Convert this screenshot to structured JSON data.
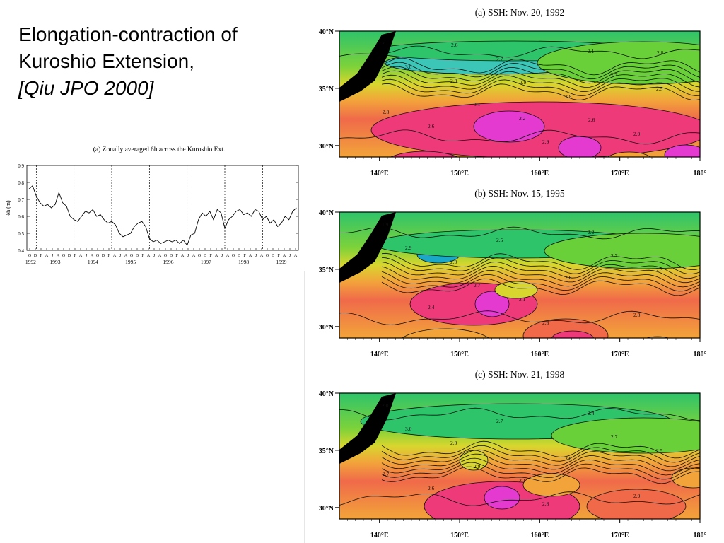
{
  "slide": {
    "title_line1": "Elongation-contraction of",
    "title_line2": "Kuroshio Extension,",
    "citation": "[Qiu JPO 2000]"
  },
  "chart_data": [
    {
      "type": "line",
      "title": "(a) Zonally averaged δh across the Kuroshio Ext.",
      "ylabel": "δh (m)",
      "xlabel": "",
      "ylim": [
        0.4,
        0.9
      ],
      "yticks": [
        "0.9",
        "0.8",
        "0.7",
        "0.6",
        "0.5",
        "0.4"
      ],
      "xlim": [
        1992.75,
        1999.95
      ],
      "month_letters": [
        "O",
        "D",
        "F",
        "A",
        "J",
        "A",
        "O",
        "D",
        "F",
        "A",
        "J",
        "A",
        "O",
        "D",
        "F",
        "A",
        "J",
        "A",
        "O",
        "D",
        "F",
        "A",
        "J",
        "A",
        "O",
        "D",
        "F",
        "A",
        "J",
        "A",
        "O",
        "D",
        "F",
        "A",
        "J",
        "A",
        "O",
        "D",
        "F",
        "A",
        "J",
        "A",
        "O",
        "D",
        "F",
        "A",
        "J",
        "A"
      ],
      "year_labels": [
        "1992",
        "1993",
        "1994",
        "1995",
        "1996",
        "1997",
        "1998",
        "1999"
      ],
      "year_label_pos": [
        1992.85,
        1993.5,
        1994.5,
        1995.5,
        1996.5,
        1997.5,
        1998.5,
        1999.5
      ],
      "dashed_lines_at": [
        1993.0,
        1994.0,
        1995.0,
        1996.0,
        1997.0,
        1998.0,
        1999.0
      ],
      "grid": false,
      "series": [
        {
          "x": [
            1992.8,
            1992.9,
            1993.0,
            1993.1,
            1993.2,
            1993.3,
            1993.4,
            1993.5,
            1993.6,
            1993.7,
            1993.8,
            1993.9,
            1994.0,
            1994.1,
            1994.2,
            1994.3,
            1994.4,
            1994.5,
            1994.6,
            1994.7,
            1994.8,
            1994.9,
            1995.0,
            1995.1,
            1995.2,
            1995.3,
            1995.4,
            1995.5,
            1995.6,
            1995.7,
            1995.8,
            1995.9,
            1996.0,
            1996.1,
            1996.2,
            1996.3,
            1996.4,
            1996.5,
            1996.6,
            1996.7,
            1996.8,
            1996.9,
            1997.0,
            1997.1,
            1997.2,
            1997.3,
            1997.4,
            1997.5,
            1997.6,
            1997.7,
            1997.8,
            1997.9,
            1998.0,
            1998.1,
            1998.2,
            1998.3,
            1998.4,
            1998.5,
            1998.6,
            1998.7,
            1998.8,
            1998.9,
            1999.0,
            1999.1,
            1999.2,
            1999.3,
            1999.4,
            1999.5,
            1999.6,
            1999.7,
            1999.8,
            1999.9
          ],
          "y": [
            0.76,
            0.78,
            0.72,
            0.68,
            0.66,
            0.67,
            0.65,
            0.67,
            0.74,
            0.68,
            0.66,
            0.6,
            0.58,
            0.57,
            0.6,
            0.63,
            0.62,
            0.64,
            0.6,
            0.61,
            0.58,
            0.56,
            0.57,
            0.55,
            0.5,
            0.48,
            0.49,
            0.5,
            0.54,
            0.56,
            0.57,
            0.54,
            0.47,
            0.45,
            0.46,
            0.44,
            0.45,
            0.46,
            0.45,
            0.46,
            0.44,
            0.46,
            0.43,
            0.49,
            0.5,
            0.58,
            0.62,
            0.6,
            0.63,
            0.58,
            0.64,
            0.62,
            0.53,
            0.58,
            0.6,
            0.63,
            0.64,
            0.61,
            0.62,
            0.6,
            0.64,
            0.63,
            0.58,
            0.6,
            0.56,
            0.58,
            0.54,
            0.56,
            0.6,
            0.58,
            0.63,
            0.65
          ]
        }
      ]
    },
    {
      "type": "heatmap",
      "title": "(a) SSH: Nov. 20, 1992",
      "xticks": [
        "140°E",
        "150°E",
        "160°E",
        "170°E",
        "180°"
      ],
      "yticks": [
        "40°N",
        "35°N",
        "30°N"
      ],
      "xlim": [
        135,
        180
      ],
      "ylim": [
        29,
        40
      ],
      "contour_labels": [
        "2.1",
        "2.3",
        "2.2",
        "2.1",
        "2.5",
        "2.6",
        "2.7",
        "2.8",
        "2.9",
        "3.0",
        "3.1",
        "2.9",
        "2.7",
        "2.8",
        "2.6",
        "2.9",
        "2.6",
        "2.8"
      ],
      "colorscale": [
        "#1aa8c8",
        "#2ec46a",
        "#7cd23a",
        "#d8d62e",
        "#f2a43a",
        "#f06a4a",
        "#ef3a7a",
        "#e53ad0"
      ]
    },
    {
      "type": "heatmap",
      "title": "(b) SSH: Nov. 15, 1995",
      "xticks": [
        "140°E",
        "150°E",
        "160°E",
        "170°E",
        "180°"
      ],
      "yticks": [
        "40°N",
        "35°N",
        "30°N"
      ],
      "xlim": [
        135,
        180
      ],
      "ylim": [
        29,
        40
      ],
      "contour_labels": [
        "1.9",
        "2.0",
        "2.1",
        "2.2",
        "2.3",
        "2.4",
        "2.5",
        "2.6",
        "2.8",
        "2.9",
        "2.7",
        "2.6",
        "2.7"
      ],
      "colorscale": [
        "#1aa8c8",
        "#2ec46a",
        "#7cd23a",
        "#d8d62e",
        "#f2a43a",
        "#f06a4a",
        "#ef3a7a",
        "#e53ad0"
      ]
    },
    {
      "type": "heatmap",
      "title": "(c) SSH: Nov. 21, 1998",
      "xticks": [
        "140°E",
        "150°E",
        "160°E",
        "170°E",
        "180°"
      ],
      "yticks": [
        "40°N",
        "35°N",
        "30°N"
      ],
      "xlim": [
        135,
        180
      ],
      "ylim": [
        29,
        40
      ],
      "contour_labels": [
        "2.0",
        "2.0",
        "2.1",
        "2.4",
        "2.5",
        "2.6",
        "2.7",
        "2.8",
        "2.9",
        "3.0",
        "2.9",
        "2.8",
        "2.7",
        "2.7"
      ],
      "colorscale": [
        "#1aa8c8",
        "#2ec46a",
        "#7cd23a",
        "#d8d62e",
        "#f2a43a",
        "#f06a4a",
        "#ef3a7a",
        "#e53ad0"
      ]
    }
  ]
}
